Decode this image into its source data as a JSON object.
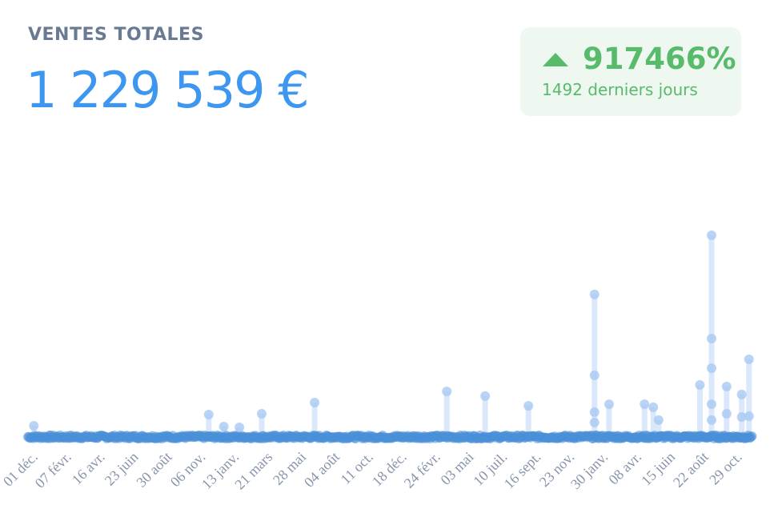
{
  "header": {
    "title": "VENTES TOTALES",
    "total": "1 229 539 €"
  },
  "badge": {
    "icon": "triangle-up-icon",
    "change": "917466%",
    "period": "1492 derniers jours",
    "color": "#58bb6c"
  },
  "chart_data": {
    "type": "scatter",
    "title": "",
    "xlabel": "",
    "ylabel": "",
    "days": 1492,
    "y_scale": "relative (max = 100)",
    "grid": false,
    "x_tick_labels": [
      "01 déc.",
      "07 févr.",
      "16 avr.",
      "23 juin",
      "30 août",
      "06 nov.",
      "13 janv.",
      "21 mars",
      "28 mai",
      "04 août",
      "11 oct.",
      "18 déc.",
      "24 févr.",
      "03 mai",
      "10 juil.",
      "16 sept.",
      "23 nov.",
      "30 janv.",
      "08 avr.",
      "15 juin",
      "22 août",
      "29 oct."
    ],
    "baseline_value": 1,
    "spikes": [
      [
        12,
        6.3
      ],
      [
        372,
        11.8
      ],
      [
        403,
        5.9
      ],
      [
        435,
        5.5
      ],
      [
        481,
        12.2
      ],
      [
        590,
        17.7
      ],
      [
        862,
        23.2
      ],
      [
        941,
        20.9
      ],
      [
        1030,
        16.1
      ],
      [
        1166,
        70.9
      ],
      [
        1166,
        31.1
      ],
      [
        1166,
        13.0
      ],
      [
        1166,
        7.9
      ],
      [
        1196,
        16.9
      ],
      [
        1269,
        16.9
      ],
      [
        1287,
        15.4
      ],
      [
        1298,
        9.1
      ],
      [
        1383,
        26.4
      ],
      [
        1407,
        100
      ],
      [
        1407,
        49.2
      ],
      [
        1407,
        34.6
      ],
      [
        1407,
        16.9
      ],
      [
        1407,
        9.1
      ],
      [
        1438,
        25.6
      ],
      [
        1438,
        12.2
      ],
      [
        1469,
        21.7
      ],
      [
        1469,
        10.6
      ],
      [
        1484,
        39.0
      ],
      [
        1484,
        11.0
      ]
    ],
    "color": "#4a90d9"
  }
}
